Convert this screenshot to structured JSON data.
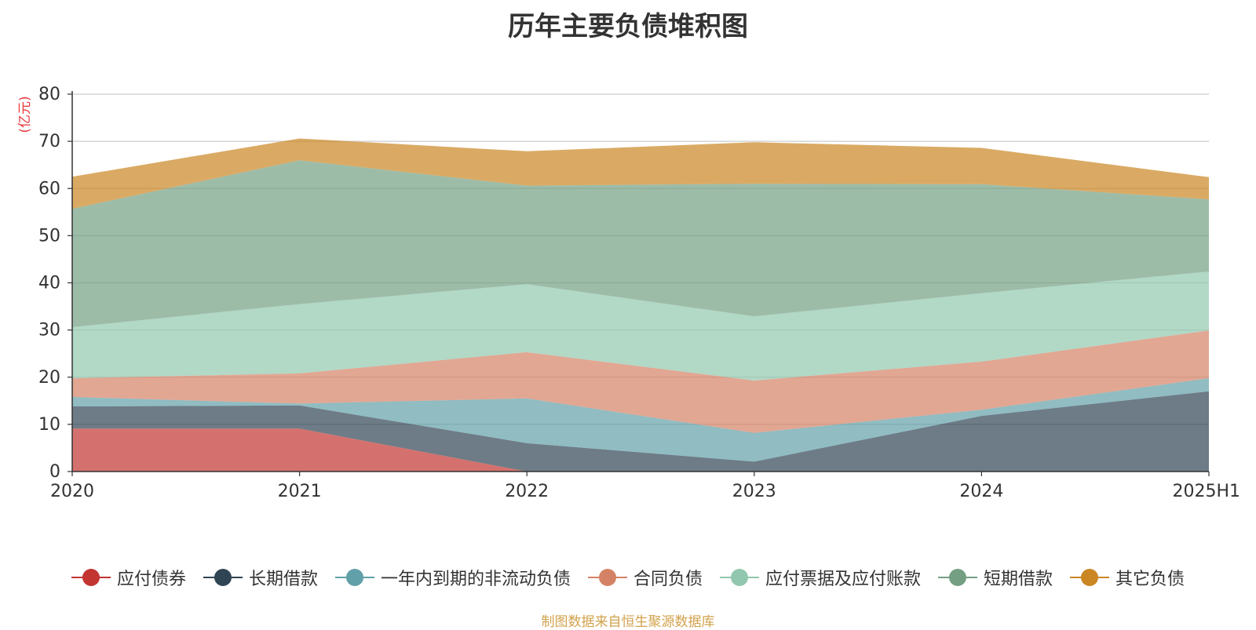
{
  "chart_data": {
    "type": "area",
    "title": "历年主要负债堆积图",
    "ylabel": "(亿元)",
    "xlabel": "",
    "categories": [
      "2020",
      "2021",
      "2022",
      "2023",
      "2024",
      "2025H1"
    ],
    "yticks": [
      "0",
      "10",
      "20",
      "30",
      "40",
      "50",
      "60",
      "70",
      "80"
    ],
    "ylim": [
      0,
      80
    ],
    "stacked": true,
    "grid": true,
    "legend_position": "bottom",
    "series": [
      {
        "name": "应付债券",
        "color": "#c23531",
        "values": [
          9.1,
          9.1,
          0,
          0,
          0,
          0
        ]
      },
      {
        "name": "长期借款",
        "color": "#2f4554",
        "values": [
          4.7,
          4.9,
          6.0,
          2.1,
          11.8,
          17.0
        ]
      },
      {
        "name": "一年内到期的非流动负债",
        "color": "#61a0a8",
        "values": [
          2.0,
          0.4,
          9.5,
          6.1,
          1.3,
          2.8
        ]
      },
      {
        "name": "合同负债",
        "color": "#d48265",
        "values": [
          4.0,
          6.4,
          9.8,
          11.1,
          10.2,
          10.1
        ]
      },
      {
        "name": "应付票据及应付账款",
        "color": "#91c7ae",
        "values": [
          10.8,
          14.7,
          14.4,
          13.6,
          14.5,
          12.5
        ]
      },
      {
        "name": "短期借款",
        "color": "#749f83",
        "values": [
          25.1,
          30.5,
          20.9,
          28.1,
          23.1,
          15.3
        ]
      },
      {
        "name": "其它负债",
        "color": "#ca8622",
        "values": [
          6.8,
          4.6,
          7.3,
          8.8,
          7.7,
          4.7
        ]
      }
    ]
  },
  "source_note": "制图数据来自恒生聚源数据库"
}
